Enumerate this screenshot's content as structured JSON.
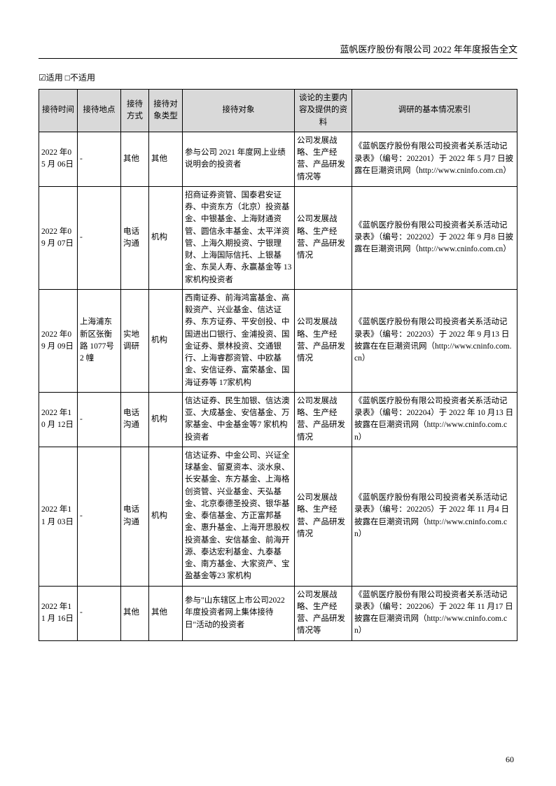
{
  "header": "蓝帆医疗股份有限公司 2022 年年度报告全文",
  "applicability_checked": "适用",
  "applicability_unchecked": "不适用",
  "page_number": "60",
  "table": {
    "headers": {
      "date": "接待时间",
      "location": "接待地点",
      "method": "接待方式",
      "type": "接待对象类型",
      "target": "接待对象",
      "content": "谈论的主要内容及提供的资料",
      "ref": "调研的基本情况索引"
    },
    "rows": [
      {
        "date": "2022 年05 月 06日",
        "location": "-",
        "method": "其他",
        "type": "其他",
        "target": "参与公司 2021 年度网上业绩说明会的投资者",
        "content": "公司发展战略、生产经营、产品研发情况等",
        "ref": "《蓝帆医疗股份有限公司投资者关系活动记录表》（编号：202201）于 2022 年 5 月7 日披露在巨潮资讯网（http://www.cninfo.com.cn）"
      },
      {
        "date": "2022 年09 月 07日",
        "location": "-",
        "method": "电话沟通",
        "type": "机构",
        "target": "招商证券资管、国泰君安证券、中资东方（北京）投资基金、中银基金、上海财通资管、圆信永丰基金、太平洋资管、上海久期投资、宁银理财、上海国际信托、上银基金、东吴人寿、永赢基金等 13 家机构投资者",
        "content": "公司发展战略、生产经营、产品研发情况",
        "ref": "《蓝帆医疗股份有限公司投资者关系活动记录表》（编号：202202）于 2022 年 9 月8 日披露在巨潮资讯网（http://www.cninfo.com.cn）"
      },
      {
        "date": "2022 年09 月 09日",
        "location": "上海浦东新区张衡路 1077号 2 幢",
        "method": "实地调研",
        "type": "机构",
        "target": "西南证券、前海鸿富基金、高毅资产、兴业基金、信达证券、东方证券、平安创投、中国进出口银行、金浦投资、国金证券、景林投资、交通银行、上海睿郡资管、中欧基金、安信证券、富荣基金、国海证券等 17家机构",
        "content": "公司发展战略、生产经营、产品研发情况",
        "ref": "《蓝帆医疗股份有限公司投资者关系活动记录表》（编号：202203）于 2022 年 9 月13 日披露在在巨潮资讯网（http://www.cninfo.com.cn）"
      },
      {
        "date": "2022 年10 月 12日",
        "location": "-",
        "method": "电话沟通",
        "type": "机构",
        "target": "信达证券、民生加银、信达澳亚、大成基金、安信基金、万家基金、中金基金等7 家机构投资者",
        "content": "公司发展战略、生产经营、产品研发情况",
        "ref": "《蓝帆医疗股份有限公司投资者关系活动记录表》（编号：202204）于 2022 年 10 月13 日披露在巨潮资讯网（http://www.cninfo.com.cn）"
      },
      {
        "date": "2022 年11 月 03日",
        "location": "-",
        "method": "电话沟通",
        "type": "机构",
        "target": "信达证券、中金公司、兴证全球基金、留夏资本、淡水泉、长安基金、东方基金、上海格创资管、兴业基金、天弘基金、北京泰德圣投资、银华基金、泰信基金、方正富邦基金、惠升基金、上海开思股权投资基金、安信基金、前海开源、泰达宏利基金、九泰基金、南方基金、大家资产、宝盈基金等23 家机构",
        "content": "公司发展战略、生产经营、产品研发情况",
        "ref": "《蓝帆医疗股份有限公司投资者关系活动记录表》（编号：202205）于 2022 年 11 月4 日披露在巨潮资讯网（http://www.cninfo.com.cn）"
      },
      {
        "date": "2022 年11 月 16日",
        "location": "-",
        "method": "其他",
        "type": "其他",
        "target": "参与\"山东辖区上市公司2022 年度投资者网上集体接待日\"活动的投资者",
        "content": "公司发展战略、生产经营、产品研发情况等",
        "ref": "《蓝帆医疗股份有限公司投资者关系活动记录表》（编号：202206）于 2022 年 11 月17 日披露在巨潮资讯网（http://www.cninfo.com.cn）"
      }
    ]
  }
}
